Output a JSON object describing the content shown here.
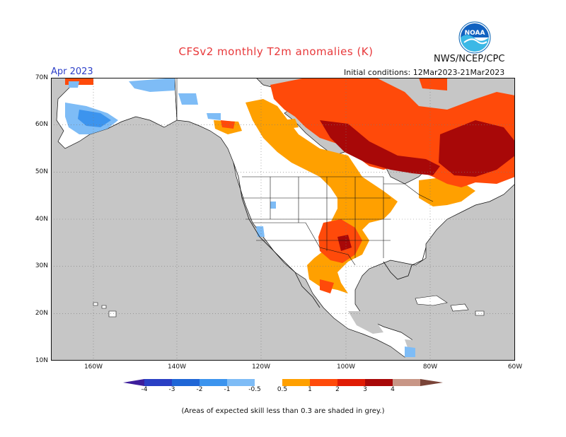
{
  "title": "CFSv2 monthly T2m anomalies (K)",
  "agency": "NWS/NCEP/CPC",
  "logo_text": "NOAA",
  "forecast_month": "Apr 2023",
  "initial_conditions": "Initial conditions: 12Mar2023-21Mar2023",
  "lat_labels": [
    "70N",
    "60N",
    "50N",
    "40N",
    "30N",
    "20N",
    "10N"
  ],
  "lon_labels": [
    "160W",
    "140W",
    "120W",
    "100W",
    "80W",
    "60W"
  ],
  "colorbar": {
    "labels": [
      "-4",
      "-3",
      "-2",
      "-1",
      "-0.5",
      "0.5",
      "1",
      "2",
      "3",
      "4"
    ],
    "colors": {
      "lt_neg4": "#3d1e9c",
      "neg4_neg3": "#2a3fc4",
      "neg3_neg2": "#1f66d6",
      "neg2_neg1": "#3c94ee",
      "neg1_neg05": "#7ebcf6",
      "neutral": "#ffffff",
      "p05_p1": "#ffa000",
      "p1_p2": "#ff4a0a",
      "p2_p3": "#e01c05",
      "p3_p4": "#a80808",
      "gt_p4_a": "#c89686",
      "gt_p4_b": "#7a4438"
    }
  },
  "map_colors": {
    "low_skill": "#c6c6c6",
    "ocean": "#c6c6c6",
    "coast": "#111111"
  },
  "skill_note": "(Areas of expected skill less than 0.3 are shaded in grey.)"
}
